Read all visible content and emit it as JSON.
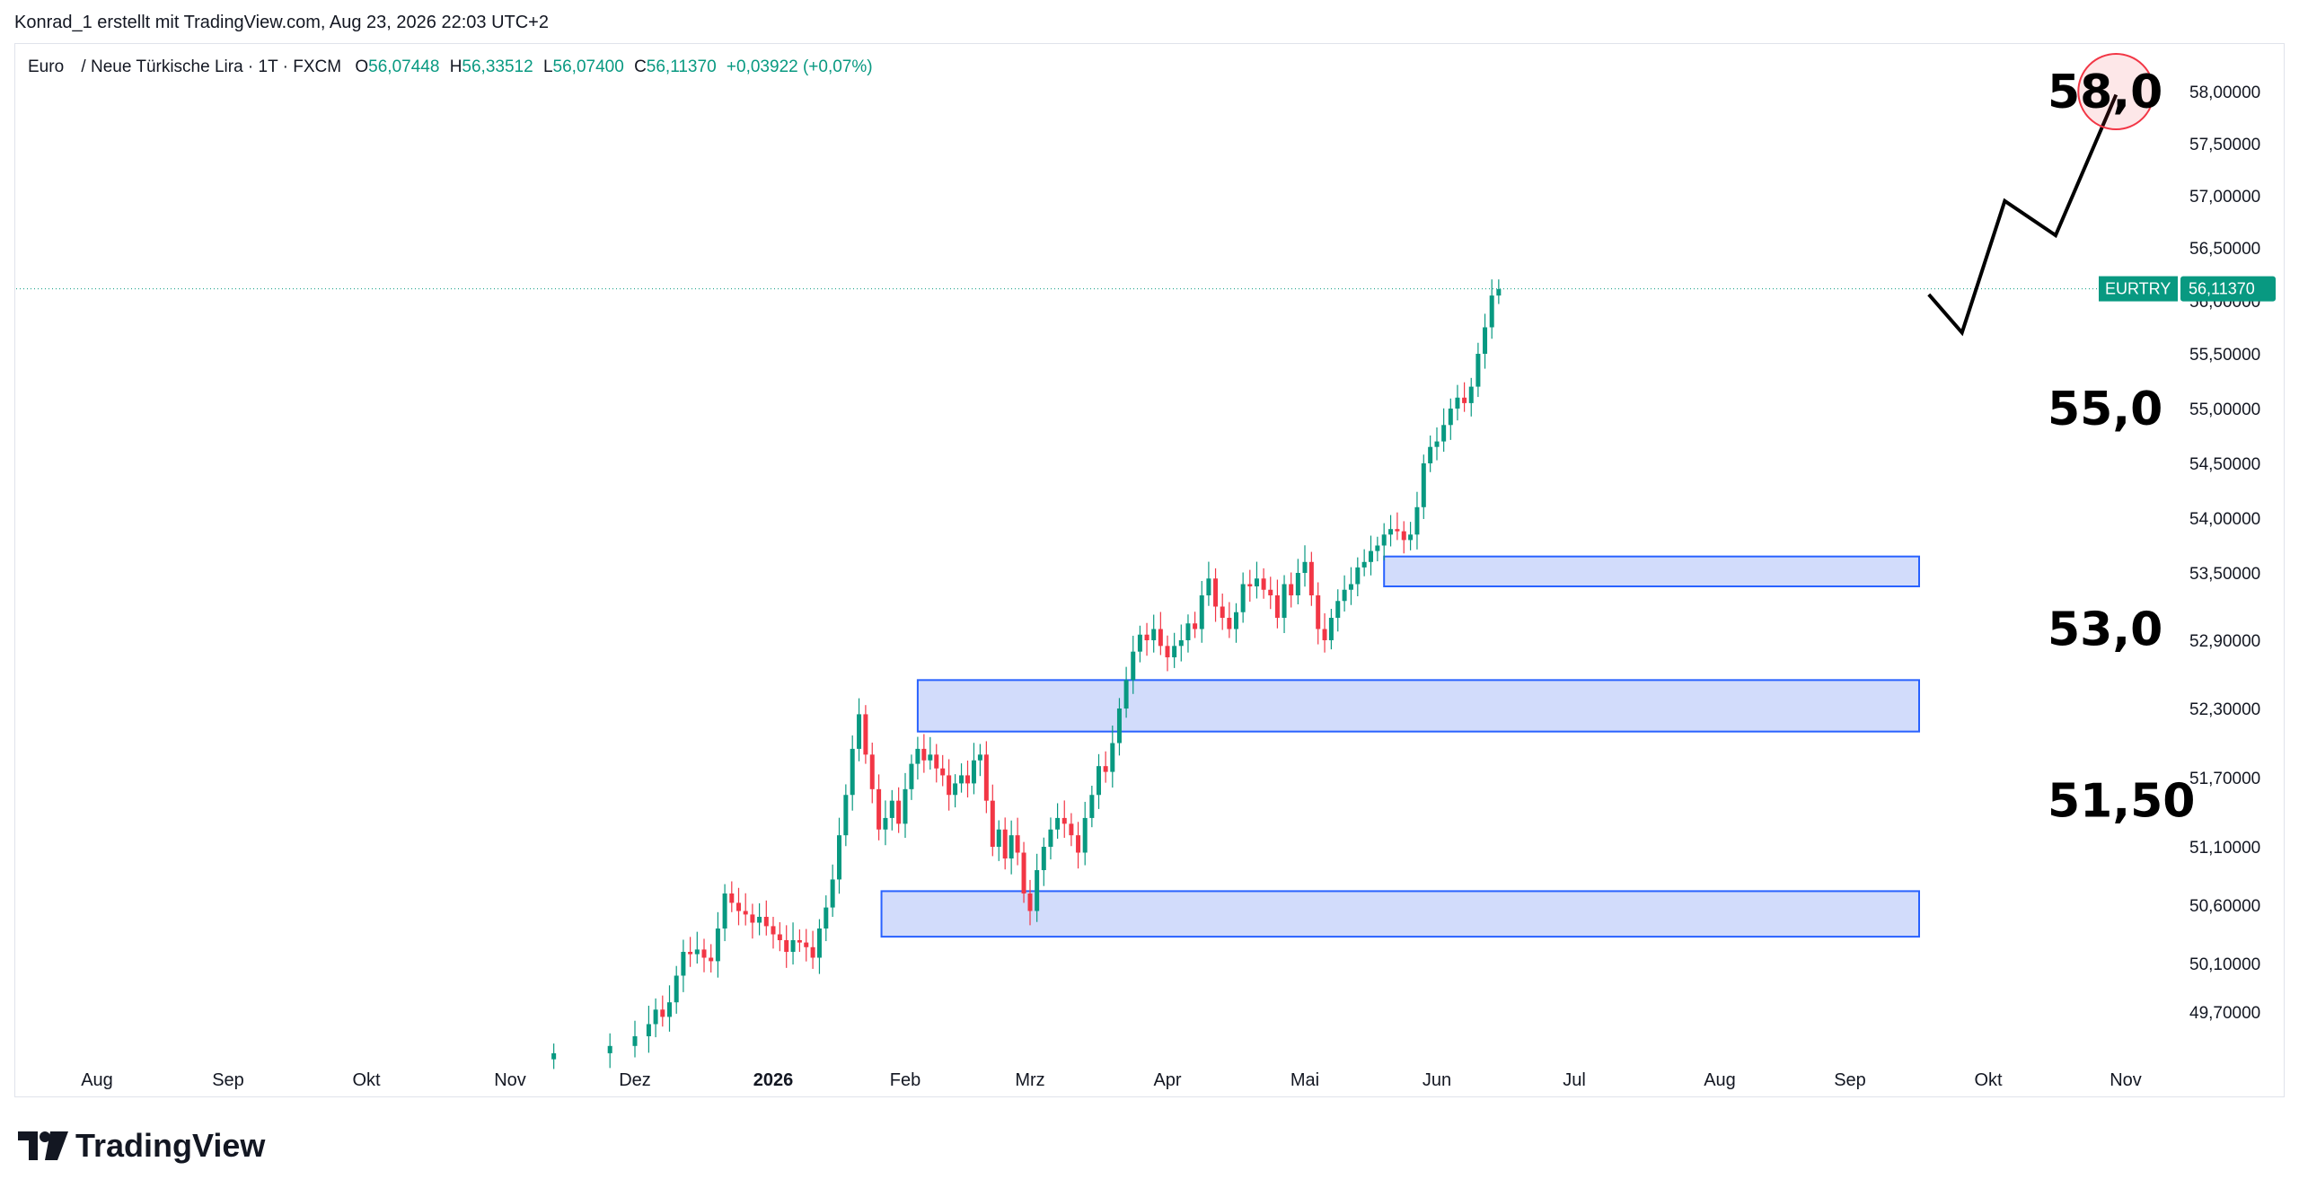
{
  "header": {
    "text": "Konrad_1 erstellt mit TradingView.com, Aug 23, 2026 22:03 UTC+2"
  },
  "legend": {
    "symbol": "Euro",
    "pair": "/ Neue Türkische Lira · 1T · FXCM",
    "o_label": "O",
    "o_value": "56,07448",
    "h_label": "H",
    "h_value": "56,33512",
    "l_label": "L",
    "l_value": "56,07400",
    "c_label": "C",
    "c_value": "56,11370",
    "change": "+0,03922 (+0,07%)"
  },
  "price_tag": {
    "symbol": "EURTRY",
    "value": "56,11370",
    "color": "#089981"
  },
  "brand": {
    "name": "TradingView"
  },
  "colors": {
    "up": "#089981",
    "down": "#f23645",
    "zone_fill": "#d2dcfb",
    "zone_stroke": "#2962ff",
    "projection": "#000000",
    "target_circle": "#f23645"
  },
  "chart_data": {
    "type": "candlestick",
    "symbol": "EURTRY",
    "y_ticks": [
      {
        "value": 58.0,
        "label": "58,00000"
      },
      {
        "value": 57.5,
        "label": "57,50000"
      },
      {
        "value": 57.0,
        "label": "57,00000"
      },
      {
        "value": 56.5,
        "label": "56,50000"
      },
      {
        "value": 56.0,
        "label": "56,00000"
      },
      {
        "value": 55.5,
        "label": "55,50000"
      },
      {
        "value": 55.0,
        "label": "55,00000"
      },
      {
        "value": 54.5,
        "label": "54,50000"
      },
      {
        "value": 54.0,
        "label": "54,00000"
      },
      {
        "value": 53.5,
        "label": "53,50000"
      },
      {
        "value": 52.9,
        "label": "52,90000"
      },
      {
        "value": 52.3,
        "label": "52,30000"
      },
      {
        "value": 51.7,
        "label": "51,70000"
      },
      {
        "value": 51.1,
        "label": "51,10000"
      },
      {
        "value": 50.6,
        "label": "50,60000"
      },
      {
        "value": 50.1,
        "label": "50,10000"
      },
      {
        "value": 49.7,
        "label": "49,70000"
      }
    ],
    "x_ticks": [
      {
        "label": "Aug",
        "bold": false
      },
      {
        "label": "Sep",
        "bold": false
      },
      {
        "label": "Okt",
        "bold": false
      },
      {
        "label": "Nov",
        "bold": false
      },
      {
        "label": "Dez",
        "bold": false
      },
      {
        "label": "2026",
        "bold": true
      },
      {
        "label": "Feb",
        "bold": false
      },
      {
        "label": "Mrz",
        "bold": false
      },
      {
        "label": "Apr",
        "bold": false
      },
      {
        "label": "Mai",
        "bold": false
      },
      {
        "label": "Jun",
        "bold": false
      },
      {
        "label": "Jul",
        "bold": false
      },
      {
        "label": "Aug",
        "bold": false
      },
      {
        "label": "Sep",
        "bold": false
      },
      {
        "label": "Okt",
        "bold": false
      },
      {
        "label": "Nov",
        "bold": false
      }
    ],
    "x_tick_month_index": [
      0,
      1,
      2,
      3,
      4,
      5,
      6,
      7,
      8,
      9,
      10,
      11,
      12,
      13,
      14,
      15
    ],
    "last_price": 56.1137,
    "closes": [
      {
        "m": 3.35,
        "c": 49.36
      },
      {
        "m": 3.8,
        "c": 49.42
      },
      {
        "m": 4.0,
        "c": 49.5
      },
      {
        "m": 4.1,
        "c": 49.6
      },
      {
        "m": 4.15,
        "c": 49.72
      },
      {
        "m": 4.2,
        "c": 49.66
      },
      {
        "m": 4.25,
        "c": 49.78
      },
      {
        "m": 4.3,
        "c": 50.0
      },
      {
        "m": 4.35,
        "c": 50.2
      },
      {
        "m": 4.4,
        "c": 50.18
      },
      {
        "m": 4.45,
        "c": 50.22
      },
      {
        "m": 4.5,
        "c": 50.15
      },
      {
        "m": 4.55,
        "c": 50.12
      },
      {
        "m": 4.6,
        "c": 50.4
      },
      {
        "m": 4.65,
        "c": 50.7
      },
      {
        "m": 4.7,
        "c": 50.62
      },
      {
        "m": 4.75,
        "c": 50.55
      },
      {
        "m": 4.8,
        "c": 50.52
      },
      {
        "m": 4.85,
        "c": 50.45
      },
      {
        "m": 4.9,
        "c": 50.5
      },
      {
        "m": 4.95,
        "c": 50.42
      },
      {
        "m": 5.0,
        "c": 50.35
      },
      {
        "m": 5.05,
        "c": 50.3
      },
      {
        "m": 5.1,
        "c": 50.2
      },
      {
        "m": 5.15,
        "c": 50.3
      },
      {
        "m": 5.2,
        "c": 50.28
      },
      {
        "m": 5.25,
        "c": 50.24
      },
      {
        "m": 5.3,
        "c": 50.15
      },
      {
        "m": 5.35,
        "c": 50.4
      },
      {
        "m": 5.4,
        "c": 50.58
      },
      {
        "m": 5.45,
        "c": 50.82
      },
      {
        "m": 5.5,
        "c": 51.2
      },
      {
        "m": 5.55,
        "c": 51.55
      },
      {
        "m": 5.6,
        "c": 51.95
      },
      {
        "m": 5.65,
        "c": 52.25
      },
      {
        "m": 5.7,
        "c": 51.9
      },
      {
        "m": 5.75,
        "c": 51.6
      },
      {
        "m": 5.8,
        "c": 51.25
      },
      {
        "m": 5.85,
        "c": 51.35
      },
      {
        "m": 5.9,
        "c": 51.5
      },
      {
        "m": 5.95,
        "c": 51.3
      },
      {
        "m": 6.0,
        "c": 51.6
      },
      {
        "m": 6.05,
        "c": 51.82
      },
      {
        "m": 6.1,
        "c": 51.95
      },
      {
        "m": 6.15,
        "c": 51.85
      },
      {
        "m": 6.2,
        "c": 51.9
      },
      {
        "m": 6.25,
        "c": 51.78
      },
      {
        "m": 6.3,
        "c": 51.72
      },
      {
        "m": 6.35,
        "c": 51.55
      },
      {
        "m": 6.4,
        "c": 51.65
      },
      {
        "m": 6.45,
        "c": 51.72
      },
      {
        "m": 6.5,
        "c": 51.65
      },
      {
        "m": 6.55,
        "c": 51.85
      },
      {
        "m": 6.6,
        "c": 51.9
      },
      {
        "m": 6.65,
        "c": 51.5
      },
      {
        "m": 6.7,
        "c": 51.1
      },
      {
        "m": 6.75,
        "c": 51.25
      },
      {
        "m": 6.8,
        "c": 51.0
      },
      {
        "m": 6.85,
        "c": 51.2
      },
      {
        "m": 6.9,
        "c": 51.05
      },
      {
        "m": 6.95,
        "c": 50.7
      },
      {
        "m": 7.0,
        "c": 50.55
      },
      {
        "m": 7.05,
        "c": 50.9
      },
      {
        "m": 7.1,
        "c": 51.1
      },
      {
        "m": 7.15,
        "c": 51.25
      },
      {
        "m": 7.2,
        "c": 51.35
      },
      {
        "m": 7.25,
        "c": 51.3
      },
      {
        "m": 7.3,
        "c": 51.2
      },
      {
        "m": 7.35,
        "c": 51.05
      },
      {
        "m": 7.4,
        "c": 51.35
      },
      {
        "m": 7.45,
        "c": 51.55
      },
      {
        "m": 7.5,
        "c": 51.8
      },
      {
        "m": 7.55,
        "c": 51.75
      },
      {
        "m": 7.6,
        "c": 52.0
      },
      {
        "m": 7.65,
        "c": 52.3
      },
      {
        "m": 7.7,
        "c": 52.55
      },
      {
        "m": 7.75,
        "c": 52.8
      },
      {
        "m": 7.8,
        "c": 52.95
      },
      {
        "m": 7.85,
        "c": 52.9
      },
      {
        "m": 7.9,
        "c": 53.0
      },
      {
        "m": 7.95,
        "c": 52.85
      },
      {
        "m": 8.0,
        "c": 52.75
      },
      {
        "m": 8.05,
        "c": 52.85
      },
      {
        "m": 8.1,
        "c": 52.9
      },
      {
        "m": 8.15,
        "c": 53.05
      },
      {
        "m": 8.2,
        "c": 53.0
      },
      {
        "m": 8.25,
        "c": 53.3
      },
      {
        "m": 8.3,
        "c": 53.45
      },
      {
        "m": 8.35,
        "c": 53.2
      },
      {
        "m": 8.4,
        "c": 53.1
      },
      {
        "m": 8.45,
        "c": 53.0
      },
      {
        "m": 8.5,
        "c": 53.15
      },
      {
        "m": 8.55,
        "c": 53.4
      },
      {
        "m": 8.6,
        "c": 53.38
      },
      {
        "m": 8.65,
        "c": 53.45
      },
      {
        "m": 8.7,
        "c": 53.35
      },
      {
        "m": 8.75,
        "c": 53.3
      },
      {
        "m": 8.8,
        "c": 53.1
      },
      {
        "m": 8.85,
        "c": 53.4
      },
      {
        "m": 8.9,
        "c": 53.3
      },
      {
        "m": 8.95,
        "c": 53.5
      },
      {
        "m": 9.0,
        "c": 53.6
      },
      {
        "m": 9.05,
        "c": 53.3
      },
      {
        "m": 9.1,
        "c": 53.0
      },
      {
        "m": 9.15,
        "c": 52.9
      },
      {
        "m": 9.2,
        "c": 53.1
      },
      {
        "m": 9.25,
        "c": 53.25
      },
      {
        "m": 9.3,
        "c": 53.35
      },
      {
        "m": 9.35,
        "c": 53.4
      },
      {
        "m": 9.4,
        "c": 53.55
      },
      {
        "m": 9.45,
        "c": 53.6
      },
      {
        "m": 9.5,
        "c": 53.7
      },
      {
        "m": 9.55,
        "c": 53.75
      },
      {
        "m": 9.6,
        "c": 53.85
      },
      {
        "m": 9.65,
        "c": 53.9
      },
      {
        "m": 9.7,
        "c": 53.88
      },
      {
        "m": 9.75,
        "c": 53.8
      },
      {
        "m": 9.8,
        "c": 53.85
      },
      {
        "m": 9.85,
        "c": 54.1
      },
      {
        "m": 9.9,
        "c": 54.5
      },
      {
        "m": 9.95,
        "c": 54.65
      },
      {
        "m": 10.0,
        "c": 54.7
      },
      {
        "m": 10.05,
        "c": 54.85
      },
      {
        "m": 10.1,
        "c": 55.0
      },
      {
        "m": 10.15,
        "c": 55.1
      },
      {
        "m": 10.2,
        "c": 55.05
      },
      {
        "m": 10.25,
        "c": 55.2
      },
      {
        "m": 10.3,
        "c": 55.5
      },
      {
        "m": 10.35,
        "c": 55.75
      },
      {
        "m": 10.4,
        "c": 56.05
      },
      {
        "m": 10.45,
        "c": 56.11
      }
    ],
    "zones": [
      {
        "from_m": 9.6,
        "to_m": 13.5,
        "top": 53.65,
        "bottom": 53.38
      },
      {
        "from_m": 6.1,
        "to_m": 13.5,
        "top": 52.55,
        "bottom": 52.1
      },
      {
        "from_m": 5.82,
        "to_m": 13.5,
        "top": 50.72,
        "bottom": 50.33
      }
    ],
    "projection_path": [
      {
        "m": 13.57,
        "v": 56.06
      },
      {
        "m": 13.81,
        "v": 55.7
      },
      {
        "m": 14.12,
        "v": 56.95
      },
      {
        "m": 14.49,
        "v": 56.62
      },
      {
        "m": 14.93,
        "v": 57.97
      }
    ],
    "target_circle": {
      "m": 14.93,
      "v": 58.0
    },
    "annotations": [
      {
        "text": "58,0",
        "value": 58.0
      },
      {
        "text": "55,0",
        "value": 55.0
      },
      {
        "text": "53,0",
        "value": 53.0
      },
      {
        "text": "51,50",
        "value": 51.5
      }
    ]
  }
}
